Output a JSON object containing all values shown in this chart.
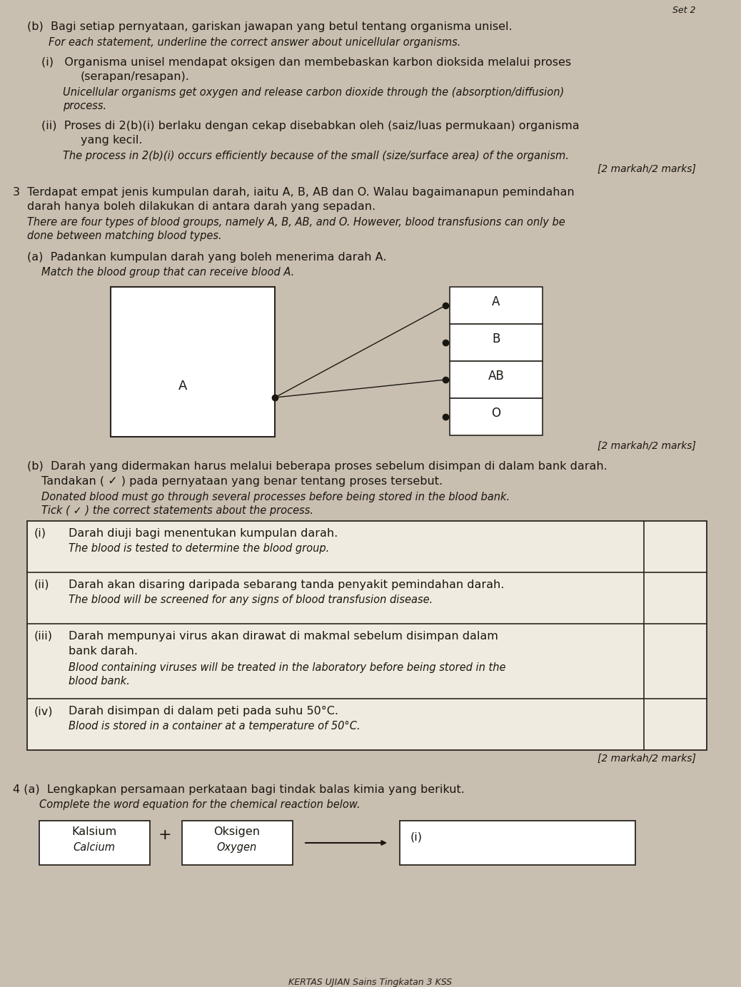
{
  "bg_color": "#c8bfb0",
  "page_color": "#ddd5c5",
  "text_color": "#1a1610",
  "title": "Set 2",
  "blood_groups": [
    "A",
    "B",
    "AB",
    "O"
  ],
  "footer": "KERTAS UJIAN Sains Tingkatan 3 KSS"
}
